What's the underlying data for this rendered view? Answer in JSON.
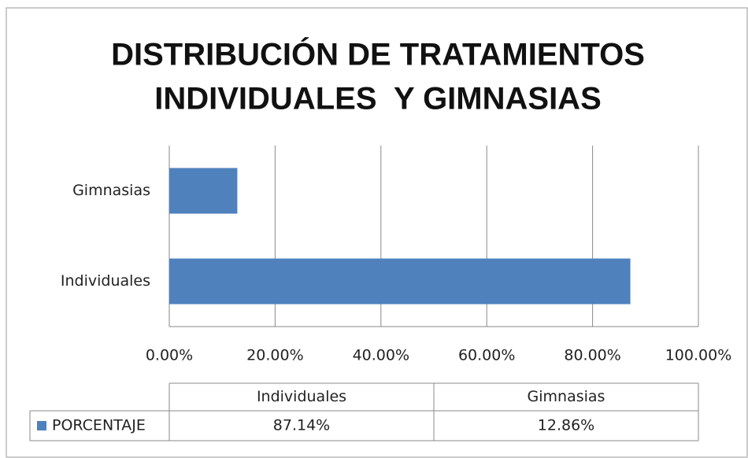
{
  "chart_data": {
    "type": "bar",
    "orientation": "horizontal",
    "title": [
      "DISTRIBUCIÓN DE TRATAMIENTOS",
      "INDIVIDUALES  Y GIMNASIAS"
    ],
    "categories": [
      "Individuales",
      "Gimnasias"
    ],
    "series": [
      {
        "name": "PORCENTAJE",
        "color": "#4f81bd",
        "values": [
          87.14,
          12.86
        ],
        "value_labels": [
          "87.14%",
          "12.86%"
        ]
      }
    ],
    "xlim": [
      0,
      100
    ],
    "xticks": [
      {
        "value": 0,
        "label": "0.00%"
      },
      {
        "value": 20,
        "label": "20.00%"
      },
      {
        "value": 40,
        "label": "40.00%"
      },
      {
        "value": 60,
        "label": "60.00%"
      },
      {
        "value": 80,
        "label": "80.00%"
      },
      {
        "value": 100,
        "label": "100.00%"
      }
    ],
    "grid": true,
    "data_table": true
  }
}
